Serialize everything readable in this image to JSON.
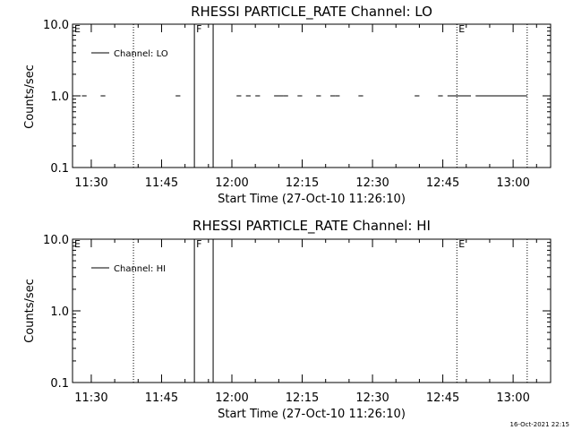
{
  "timestamp": "16-Oct-2021 22:15",
  "chart_data": [
    {
      "type": "line",
      "title": "RHESSI PARTICLE_RATE Channel: LO",
      "xlabel": "Start Time (27-Oct-10 11:26:10)",
      "ylabel": "Counts/sec",
      "yscale": "log",
      "xlim": [
        "11:26",
        "13:08"
      ],
      "ylim": [
        0.1,
        10.0
      ],
      "x_ticks": [
        "11:30",
        "11:45",
        "12:00",
        "12:15",
        "12:30",
        "12:45",
        "13:00"
      ],
      "y_ticks": [
        "0.1",
        "1.0",
        "10.0"
      ],
      "legend": {
        "position": "top-left",
        "entries": [
          "Channel: LO"
        ]
      },
      "markers": [
        {
          "label": "E",
          "time": "11:26",
          "style": "none"
        },
        {
          "label": "",
          "time": "11:39",
          "style": "dotted"
        },
        {
          "label": "F",
          "time": "11:52",
          "style": "solid"
        },
        {
          "label": "",
          "time": "11:56",
          "style": "solid"
        },
        {
          "label": "E",
          "time": "12:48",
          "style": "dotted"
        },
        {
          "label": "",
          "time": "13:03",
          "style": "dotted"
        }
      ],
      "series": [
        {
          "name": "Channel: LO",
          "value": 1.0,
          "segments": [
            [
              "11:26",
              "11:27"
            ],
            [
              "11:28",
              "11:29"
            ],
            [
              "11:32",
              "11:33"
            ],
            [
              "11:48",
              "11:49"
            ],
            [
              "12:01",
              "12:02"
            ],
            [
              "12:03",
              "12:04"
            ],
            [
              "12:05",
              "12:06"
            ],
            [
              "12:09",
              "12:11"
            ],
            [
              "12:11",
              "12:12"
            ],
            [
              "12:14",
              "12:15"
            ],
            [
              "12:18",
              "12:19"
            ],
            [
              "12:21",
              "12:22"
            ],
            [
              "12:22",
              "12:23"
            ],
            [
              "12:27",
              "12:28"
            ],
            [
              "12:39",
              "12:40"
            ],
            [
              "12:44",
              "12:45"
            ],
            [
              "12:46",
              "12:51"
            ],
            [
              "12:52",
              "13:03"
            ]
          ]
        }
      ]
    },
    {
      "type": "line",
      "title": "RHESSI PARTICLE_RATE Channel: HI",
      "xlabel": "Start Time (27-Oct-10 11:26:10)",
      "ylabel": "Counts/sec",
      "yscale": "log",
      "xlim": [
        "11:26",
        "13:08"
      ],
      "ylim": [
        0.1,
        10.0
      ],
      "x_ticks": [
        "11:30",
        "11:45",
        "12:00",
        "12:15",
        "12:30",
        "12:45",
        "13:00"
      ],
      "y_ticks": [
        "0.1",
        "1.0",
        "10.0"
      ],
      "legend": {
        "position": "top-left",
        "entries": [
          "Channel: HI"
        ]
      },
      "markers": [
        {
          "label": "E",
          "time": "11:26",
          "style": "none"
        },
        {
          "label": "",
          "time": "11:39",
          "style": "dotted"
        },
        {
          "label": "F",
          "time": "11:52",
          "style": "solid"
        },
        {
          "label": "",
          "time": "11:56",
          "style": "solid"
        },
        {
          "label": "E",
          "time": "12:48",
          "style": "dotted"
        },
        {
          "label": "",
          "time": "13:03",
          "style": "dotted"
        }
      ],
      "series": [
        {
          "name": "Channel: HI",
          "value": null,
          "segments": []
        }
      ]
    }
  ]
}
